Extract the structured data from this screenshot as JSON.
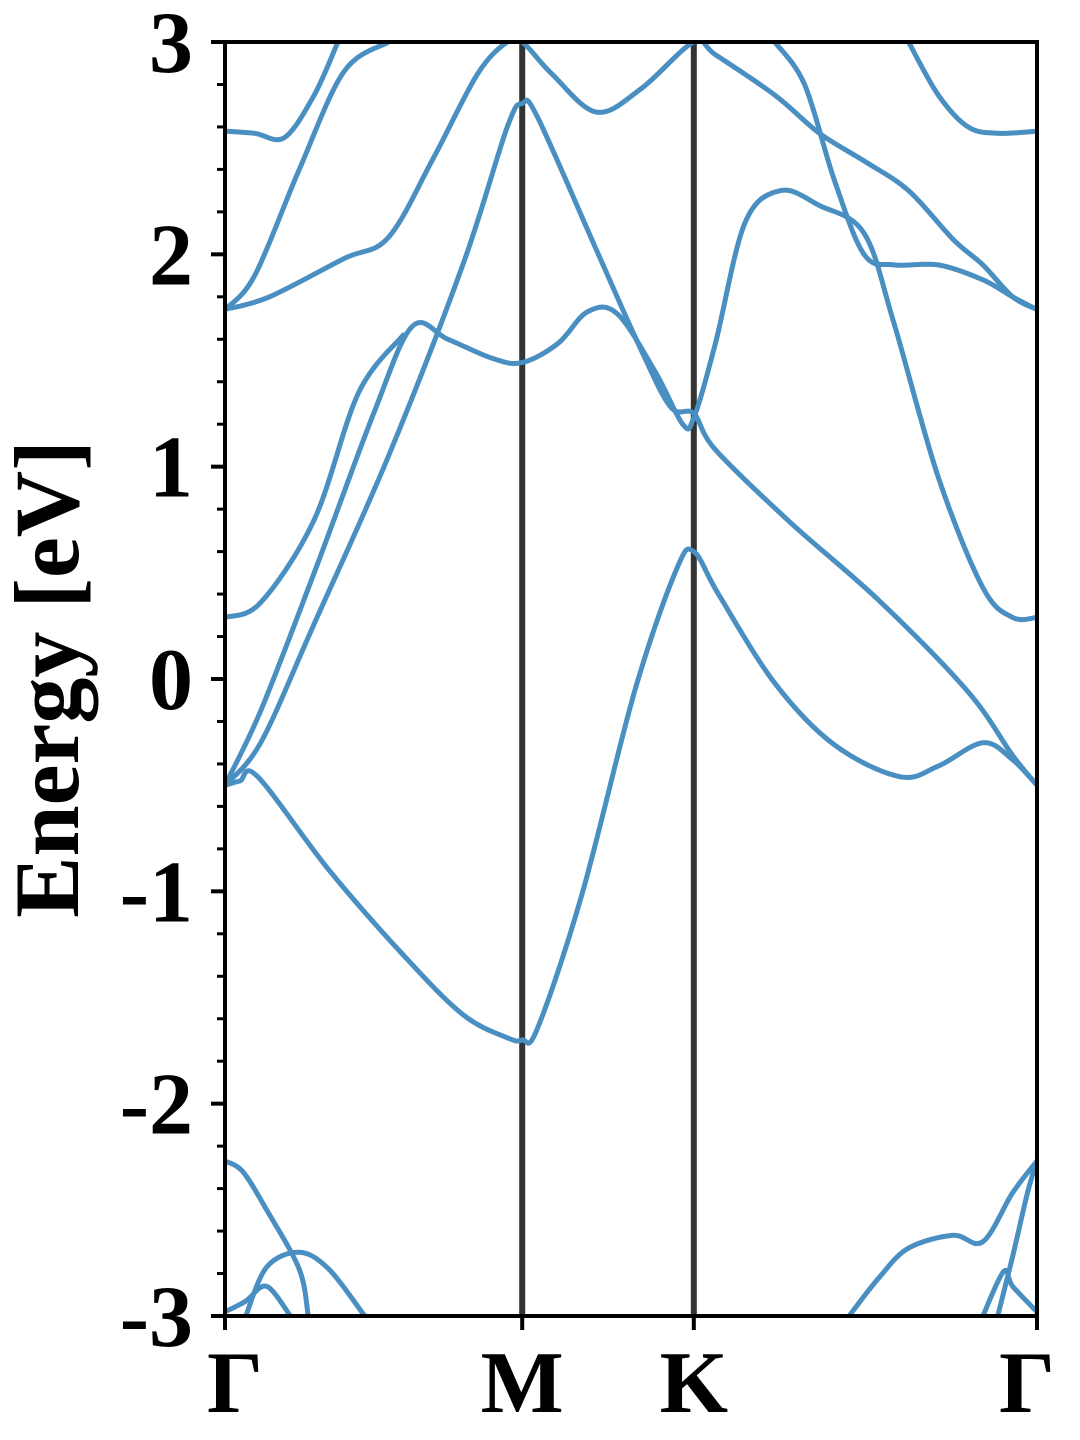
{
  "chart_data": {
    "type": "line",
    "title": "",
    "xlabel": "",
    "ylabel": "Energy [eV]",
    "ylim": [
      -3,
      3
    ],
    "yticks": [
      "-3",
      "-2",
      "-1",
      "0",
      "1",
      "2",
      "3"
    ],
    "kpath": [
      {
        "label": "Γ",
        "x": 0.0
      },
      {
        "label": "M",
        "x": 1.0
      },
      {
        "label": "K",
        "x": 1.5774
      },
      {
        "label": "Γ",
        "x": 2.7321
      }
    ],
    "grid": false,
    "colors": {
      "bands": "#4a8fc2",
      "kpath_lines": "#333333",
      "frame": "#000000"
    },
    "series": [
      {
        "values": [
          [
            0,
            -2.98
          ],
          [
            0.07,
            -2.93
          ],
          [
            0.14,
            -2.86
          ],
          [
            0.22,
            -3.0
          ]
        ]
      },
      {
        "values": [
          [
            0.07,
            -3.0
          ],
          [
            0.14,
            -2.77
          ],
          [
            0.25,
            -2.7
          ],
          [
            0.35,
            -2.78
          ],
          [
            0.47,
            -3.0
          ]
        ]
      },
      {
        "values": [
          [
            0,
            -2.27
          ],
          [
            0.06,
            -2.32
          ],
          [
            0.14,
            -2.5
          ],
          [
            0.25,
            -2.78
          ],
          [
            0.28,
            -3.0
          ]
        ]
      },
      {
        "values": [
          [
            0,
            -0.5
          ],
          [
            0.05,
            -0.48
          ],
          [
            0.11,
            -0.46
          ],
          [
            0.35,
            -0.9
          ],
          [
            0.6,
            -1.3
          ],
          [
            0.8,
            -1.58
          ],
          [
            0.95,
            -1.69
          ],
          [
            1.0,
            -1.7
          ],
          [
            1.05,
            -1.65
          ],
          [
            1.2,
            -1.02
          ],
          [
            1.38,
            -0.05
          ],
          [
            1.52,
            0.52
          ],
          [
            1.5774,
            0.6
          ],
          [
            1.66,
            0.4
          ],
          [
            1.85,
            -0.02
          ],
          [
            2.05,
            -0.31
          ],
          [
            2.27,
            -0.46
          ],
          [
            2.4,
            -0.41
          ],
          [
            2.55,
            -0.3
          ],
          [
            2.65,
            -0.38
          ],
          [
            2.7321,
            -0.5
          ]
        ]
      },
      {
        "values": [
          [
            0,
            -0.5
          ],
          [
            0.12,
            -0.3
          ],
          [
            0.3,
            0.26
          ],
          [
            0.55,
            1.05
          ],
          [
            0.8,
            1.95
          ],
          [
            0.95,
            2.6
          ],
          [
            1.0,
            2.71
          ],
          [
            1.05,
            2.65
          ],
          [
            1.25,
            2.02
          ],
          [
            1.4,
            1.55
          ],
          [
            1.5,
            1.28
          ],
          [
            1.5774,
            1.25
          ],
          [
            1.65,
            1.08
          ],
          [
            1.9,
            0.74
          ],
          [
            2.2,
            0.37
          ],
          [
            2.5,
            -0.06
          ],
          [
            2.65,
            -0.36
          ],
          [
            2.7321,
            -0.5
          ]
        ]
      },
      {
        "values": [
          [
            0,
            -0.5
          ],
          [
            0.12,
            -0.15
          ],
          [
            0.3,
            0.5
          ],
          [
            0.5,
            1.25
          ],
          [
            0.63,
            1.66
          ],
          [
            0.75,
            1.6
          ],
          [
            0.9,
            1.51
          ],
          [
            1.0,
            1.49
          ],
          [
            1.12,
            1.58
          ],
          [
            1.22,
            1.73
          ],
          [
            1.32,
            1.72
          ],
          [
            1.45,
            1.44
          ],
          [
            1.54,
            1.2
          ],
          [
            1.5774,
            1.23
          ],
          [
            1.65,
            1.58
          ],
          [
            1.75,
            2.15
          ],
          [
            1.87,
            2.3
          ],
          [
            2.0,
            2.23
          ],
          [
            2.15,
            2.1
          ],
          [
            2.25,
            1.68
          ],
          [
            2.4,
            0.95
          ],
          [
            2.55,
            0.43
          ],
          [
            2.65,
            0.29
          ],
          [
            2.7321,
            0.29
          ]
        ]
      },
      {
        "values": [
          [
            0,
            0.29
          ],
          [
            0.12,
            0.36
          ],
          [
            0.3,
            0.75
          ],
          [
            0.45,
            1.35
          ],
          [
            0.6,
            1.62
          ]
        ]
      },
      {
        "values": [
          [
            0,
            1.74
          ],
          [
            0.15,
            1.8
          ],
          [
            0.4,
            1.98
          ],
          [
            0.55,
            2.08
          ],
          [
            0.7,
            2.45
          ],
          [
            0.85,
            2.85
          ],
          [
            0.95,
            3.0
          ],
          [
            1.0,
            3.0
          ],
          [
            1.1,
            2.85
          ],
          [
            1.25,
            2.67
          ],
          [
            1.4,
            2.78
          ],
          [
            1.5774,
            3.0
          ],
          [
            1.65,
            2.94
          ],
          [
            1.85,
            2.75
          ],
          [
            2.0,
            2.57
          ],
          [
            2.15,
            2.44
          ],
          [
            2.3,
            2.3
          ],
          [
            2.45,
            2.07
          ],
          [
            2.55,
            1.95
          ],
          [
            2.65,
            1.8
          ],
          [
            2.7321,
            1.74
          ]
        ]
      },
      {
        "values": [
          [
            0,
            1.74
          ],
          [
            0.1,
            1.9
          ],
          [
            0.25,
            2.4
          ],
          [
            0.4,
            2.86
          ],
          [
            0.55,
            3.0
          ]
        ]
      },
      {
        "values": [
          [
            0,
            2.58
          ],
          [
            0.1,
            2.57
          ],
          [
            0.2,
            2.55
          ],
          [
            0.3,
            2.75
          ],
          [
            0.38,
            3.0
          ]
        ]
      },
      {
        "values": [
          [
            1.85,
            3.0
          ],
          [
            1.95,
            2.8
          ],
          [
            2.05,
            2.35
          ],
          [
            2.15,
            2.0
          ],
          [
            2.25,
            1.95
          ],
          [
            2.4,
            1.95
          ],
          [
            2.55,
            1.88
          ],
          [
            2.65,
            1.8
          ],
          [
            2.7321,
            1.74
          ]
        ]
      },
      {
        "values": [
          [
            2.3,
            3.0
          ],
          [
            2.4,
            2.75
          ],
          [
            2.5,
            2.6
          ],
          [
            2.6,
            2.57
          ],
          [
            2.7321,
            2.58
          ]
        ]
      },
      {
        "values": [
          [
            2.1,
            -3.0
          ],
          [
            2.2,
            -2.82
          ],
          [
            2.3,
            -2.68
          ],
          [
            2.45,
            -2.62
          ],
          [
            2.55,
            -2.65
          ],
          [
            2.65,
            -2.42
          ],
          [
            2.7321,
            -2.27
          ]
        ]
      },
      {
        "values": [
          [
            2.55,
            -3.0
          ],
          [
            2.62,
            -2.79
          ],
          [
            2.65,
            -2.86
          ],
          [
            2.7321,
            -2.98
          ]
        ]
      },
      {
        "values": [
          [
            2.6,
            -3.0
          ],
          [
            2.65,
            -2.72
          ],
          [
            2.7,
            -2.42
          ],
          [
            2.7321,
            -2.27
          ]
        ]
      }
    ]
  }
}
